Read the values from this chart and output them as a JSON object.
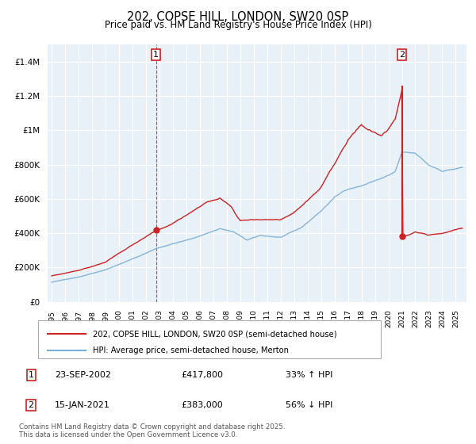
{
  "title": "202, COPSE HILL, LONDON, SW20 0SP",
  "subtitle": "Price paid vs. HM Land Registry's House Price Index (HPI)",
  "ylim": [
    0,
    1500000
  ],
  "yticks": [
    0,
    200000,
    400000,
    600000,
    800000,
    1000000,
    1200000,
    1400000
  ],
  "hpi_color": "#7aaed6",
  "price_color": "#cc2222",
  "sale1_t": 2002.75,
  "sale1_price": 417800,
  "sale2_t": 2021.0,
  "sale2_price": 383000,
  "legend_label_price": "202, COPSE HILL, LONDON, SW20 0SP (semi-detached house)",
  "legend_label_hpi": "HPI: Average price, semi-detached house, Merton",
  "footer": "Contains HM Land Registry data © Crown copyright and database right 2025.\nThis data is licensed under the Open Government Licence v3.0.",
  "table": [
    {
      "num": "1",
      "date": "23-SEP-2002",
      "price": "£417,800",
      "pct": "33% ↑ HPI"
    },
    {
      "num": "2",
      "date": "15-JAN-2021",
      "price": "£383,000",
      "pct": "56% ↓ HPI"
    }
  ],
  "plot_bg_color": "#e8f0f8",
  "grid_color": "#ffffff"
}
